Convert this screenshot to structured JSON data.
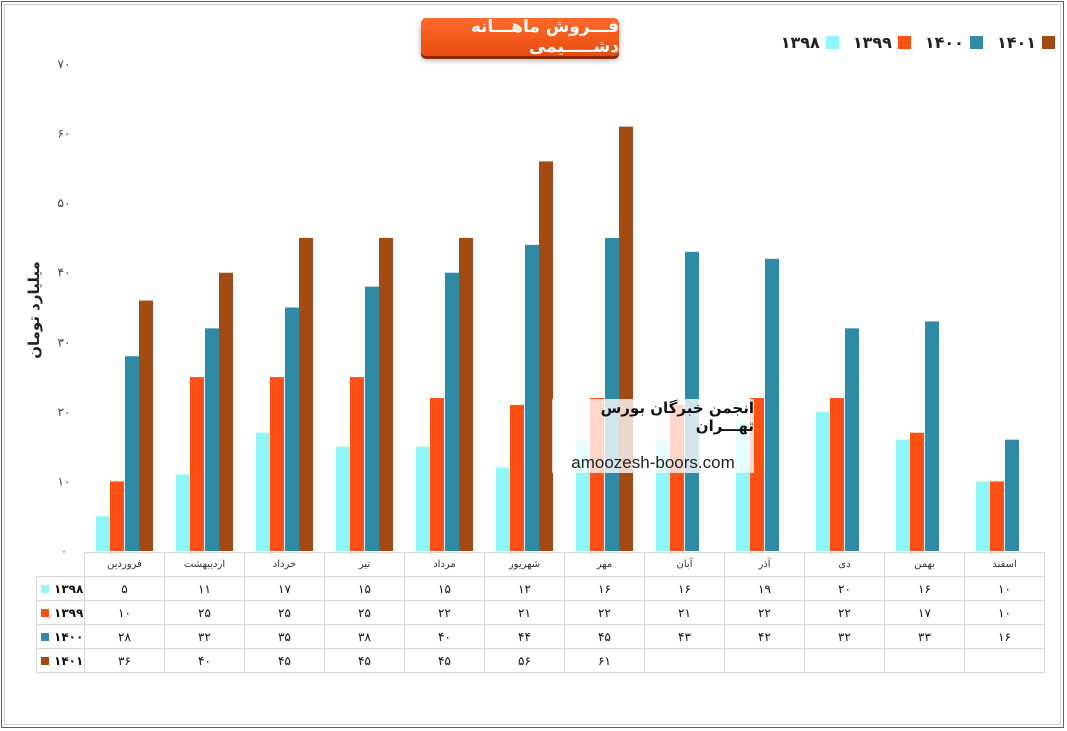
{
  "chart_data": {
    "type": "bar",
    "title": "فـــروش ماهـــانه دشـــــیمی",
    "ylabel": "میلیارد تومان",
    "ylim": [
      0,
      70
    ],
    "yticks": [
      "۰",
      "۱۰",
      "۲۰",
      "۳۰",
      "۴۰",
      "۵۰",
      "۶۰",
      "۷۰"
    ],
    "legend_position": "top-right",
    "categories": [
      "فروردین",
      "اردیبهشت",
      "خرداد",
      "تیر",
      "مرداد",
      "شهریور",
      "مهر",
      "آبان",
      "آذر",
      "دی",
      "بهمن",
      "اسفند"
    ],
    "series": [
      {
        "name": "۱۳۹۸",
        "color": "#8ff7fb",
        "values": [
          5,
          11,
          17,
          15,
          15,
          12,
          16,
          16,
          19,
          20,
          16,
          10
        ],
        "labels": [
          "۵",
          "۱۱",
          "۱۷",
          "۱۵",
          "۱۵",
          "۱۲",
          "۱۶",
          "۱۶",
          "۱۹",
          "۲۰",
          "۱۶",
          "۱۰"
        ]
      },
      {
        "name": "۱۳۹۹",
        "color": "#ff5014",
        "values": [
          10,
          25,
          25,
          25,
          22,
          21,
          22,
          21,
          22,
          22,
          17,
          10
        ],
        "labels": [
          "۱۰",
          "۲۵",
          "۲۵",
          "۲۵",
          "۲۲",
          "۲۱",
          "۲۲",
          "۲۱",
          "۲۲",
          "۲۲",
          "۱۷",
          "۱۰"
        ]
      },
      {
        "name": "۱۴۰۰",
        "color": "#2e8aa5",
        "values": [
          28,
          32,
          35,
          38,
          40,
          44,
          45,
          43,
          42,
          32,
          33,
          16
        ],
        "labels": [
          "۲۸",
          "۳۲",
          "۳۵",
          "۳۸",
          "۴۰",
          "۴۴",
          "۴۵",
          "۴۳",
          "۴۲",
          "۳۲",
          "۳۳",
          "۱۶"
        ]
      },
      {
        "name": "۱۴۰۱",
        "color": "#a44a14",
        "values": [
          36,
          40,
          45,
          45,
          45,
          56,
          61,
          null,
          null,
          null,
          null,
          null
        ],
        "labels": [
          "۳۶",
          "۴۰",
          "۴۵",
          "۴۵",
          "۴۵",
          "۵۶",
          "۶۱",
          "",
          "",
          "",
          "",
          ""
        ]
      }
    ]
  },
  "watermark": {
    "title": "انجمن خبرگان بورس تهـــران",
    "url": "amoozesh-boors.com"
  }
}
